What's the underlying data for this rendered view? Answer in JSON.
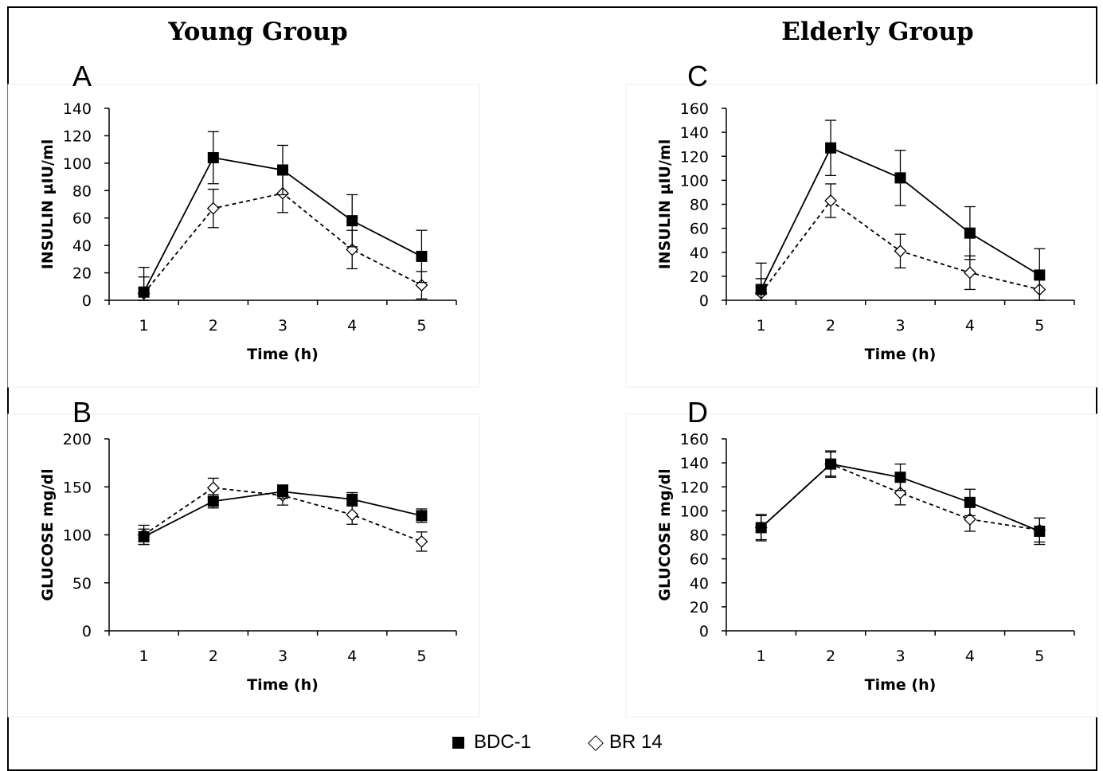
{
  "titles": {
    "left": "Young Group",
    "right": "Elderly Group"
  },
  "legend": {
    "bdc": "BDC-1",
    "br": "BR 14"
  },
  "colors": {
    "line": "#000000",
    "bdc_fill": "#000000",
    "br_fill": "#ffffff",
    "panel_bg": "#ffffff",
    "border": "#000000"
  },
  "chart_data": [
    {
      "id": "A",
      "type": "line",
      "panel_letter": "A",
      "xlabel": "Time (h)",
      "ylabel": "INSULIN µIU/ml",
      "x": [
        1,
        2,
        3,
        4,
        5
      ],
      "xlim": [
        0.5,
        5.5
      ],
      "ylim": [
        0,
        140
      ],
      "yticks": [
        0,
        20,
        40,
        60,
        80,
        100,
        120,
        140
      ],
      "series": [
        {
          "name": "BDC-1",
          "marker": "square",
          "style": "solid",
          "values": [
            6,
            104,
            95,
            58,
            32
          ],
          "err": [
            18,
            19,
            18,
            19,
            19
          ]
        },
        {
          "name": "BR 14",
          "marker": "diamond",
          "style": "dashed",
          "values": [
            5,
            67,
            78,
            37,
            11
          ],
          "err": [
            12,
            14,
            14,
            14,
            10
          ]
        }
      ]
    },
    {
      "id": "B",
      "type": "line",
      "panel_letter": "B",
      "xlabel": "Time (h)",
      "ylabel": "GLUCOSE mg/dl",
      "x": [
        1,
        2,
        3,
        4,
        5
      ],
      "xlim": [
        0.5,
        5.5
      ],
      "ylim": [
        0,
        200
      ],
      "yticks": [
        0,
        50,
        100,
        150,
        200
      ],
      "series": [
        {
          "name": "BDC-1",
          "marker": "square",
          "style": "solid",
          "values": [
            98,
            135,
            145,
            137,
            120
          ],
          "err": [
            8,
            7,
            7,
            7,
            7
          ]
        },
        {
          "name": "BR 14",
          "marker": "diamond",
          "style": "dashed",
          "values": [
            100,
            149,
            141,
            121,
            93
          ],
          "err": [
            10,
            10,
            10,
            10,
            10
          ]
        }
      ]
    },
    {
      "id": "C",
      "type": "line",
      "panel_letter": "C",
      "xlabel": "Time (h)",
      "ylabel": "INSULIN µIU/ml",
      "x": [
        1,
        2,
        3,
        4,
        5
      ],
      "xlim": [
        0.5,
        5.5
      ],
      "ylim": [
        0,
        160
      ],
      "yticks": [
        0,
        20,
        40,
        60,
        80,
        100,
        120,
        140,
        160
      ],
      "series": [
        {
          "name": "BDC-1",
          "marker": "square",
          "style": "solid",
          "values": [
            9,
            127,
            102,
            56,
            21
          ],
          "err": [
            22,
            23,
            23,
            22,
            22
          ]
        },
        {
          "name": "BR 14",
          "marker": "diamond",
          "style": "dashed",
          "values": [
            6,
            83,
            41,
            23,
            9
          ],
          "err": [
            12,
            14,
            14,
            14,
            9
          ]
        }
      ]
    },
    {
      "id": "D",
      "type": "line",
      "panel_letter": "D",
      "xlabel": "Time (h)",
      "ylabel": "GLUCOSE mg/dl",
      "x": [
        1,
        2,
        3,
        4,
        5
      ],
      "xlim": [
        0.5,
        5.5
      ],
      "ylim": [
        0,
        160
      ],
      "yticks": [
        0,
        20,
        40,
        60,
        80,
        100,
        120,
        140,
        160
      ],
      "series": [
        {
          "name": "BDC-1",
          "marker": "square",
          "style": "solid",
          "values": [
            86,
            139,
            128,
            107,
            83
          ],
          "err": [
            11,
            11,
            11,
            11,
            11
          ]
        },
        {
          "name": "BR 14",
          "marker": "diamond",
          "style": "dashed",
          "values": [
            86,
            139,
            115,
            93,
            84
          ],
          "err": [
            10,
            10,
            10,
            10,
            10
          ]
        }
      ]
    }
  ]
}
